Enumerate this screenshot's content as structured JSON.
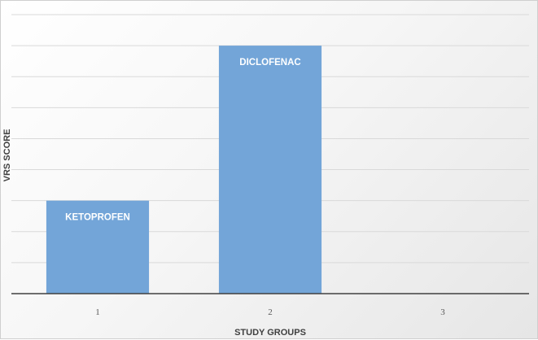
{
  "chart_data": {
    "type": "bar",
    "title": "",
    "xlabel": "STUDY GROUPS",
    "ylabel": "VRS SCORE",
    "categories": [
      "1",
      "2",
      "3"
    ],
    "values": [
      3,
      8,
      null
    ],
    "data_labels": [
      "KETOPROFEN",
      "DICLOFENAC",
      ""
    ],
    "ylim": [
      0,
      9
    ],
    "grid": true,
    "legend": "none",
    "bar_color": "#73a5d8",
    "gridline_color": "#d9d9d9"
  }
}
